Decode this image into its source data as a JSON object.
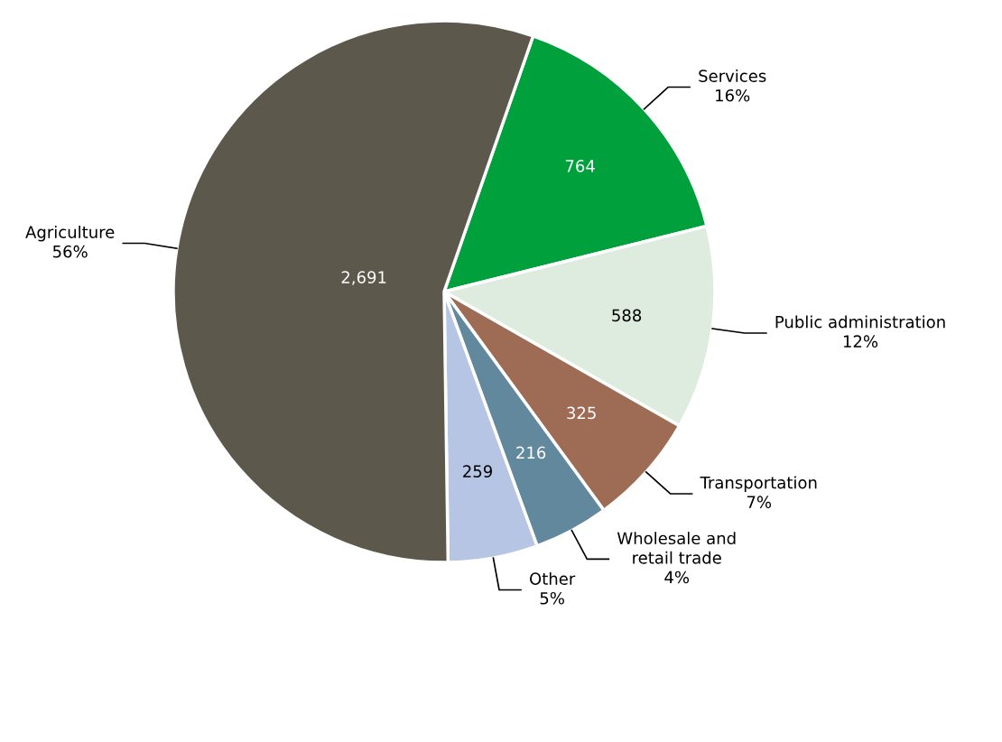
{
  "chart_data": {
    "type": "pie",
    "categories": [
      "Services\n16%",
      "Public administration\n12%",
      "Transportation\n7%",
      "Wholesale and\nretail trade\n4%",
      "Other\n5%",
      "Agriculture\n56%"
    ],
    "values": [
      764,
      588,
      325,
      216,
      259,
      2691
    ],
    "value_labels": [
      "764",
      "588",
      "325",
      "216",
      "259",
      "2,691"
    ],
    "colors": [
      "#00a03c",
      "#deebdf",
      "#9e6b55",
      "#62889d",
      "#b5c5e3",
      "#5c584c"
    ],
    "legend": false
  }
}
